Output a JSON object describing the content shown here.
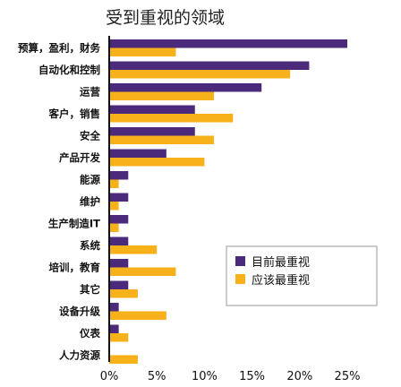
{
  "chart_data": {
    "type": "bar",
    "orientation": "horizontal",
    "title": "受到重视的领域",
    "categories": [
      "预算，盈利，财务",
      "自动化和控制",
      "运营",
      "客户，销售",
      "安全",
      "产品开发",
      "能源",
      "维护",
      "生产制造IT",
      "系统",
      "培训，教育",
      "其它",
      "设备升级",
      "仪表",
      "人力资源"
    ],
    "series": [
      {
        "name": "目前最重视",
        "color": "#4b2a7b",
        "values": [
          25,
          21,
          16,
          9,
          9,
          6,
          2,
          2,
          2,
          2,
          2,
          2,
          1,
          1,
          0
        ]
      },
      {
        "name": "应该最重视",
        "color": "#f7b21b",
        "values": [
          7,
          19,
          11,
          13,
          11,
          10,
          1,
          1,
          1,
          5,
          7,
          3,
          6,
          2,
          3
        ]
      }
    ],
    "xlim": [
      0,
      25
    ],
    "xticks": [
      "0%",
      "5%",
      "10%",
      "15%",
      "20%",
      "25%"
    ],
    "xtick_values": [
      0,
      5,
      10,
      15,
      20,
      25
    ],
    "legend_position": "right",
    "grid": false
  }
}
